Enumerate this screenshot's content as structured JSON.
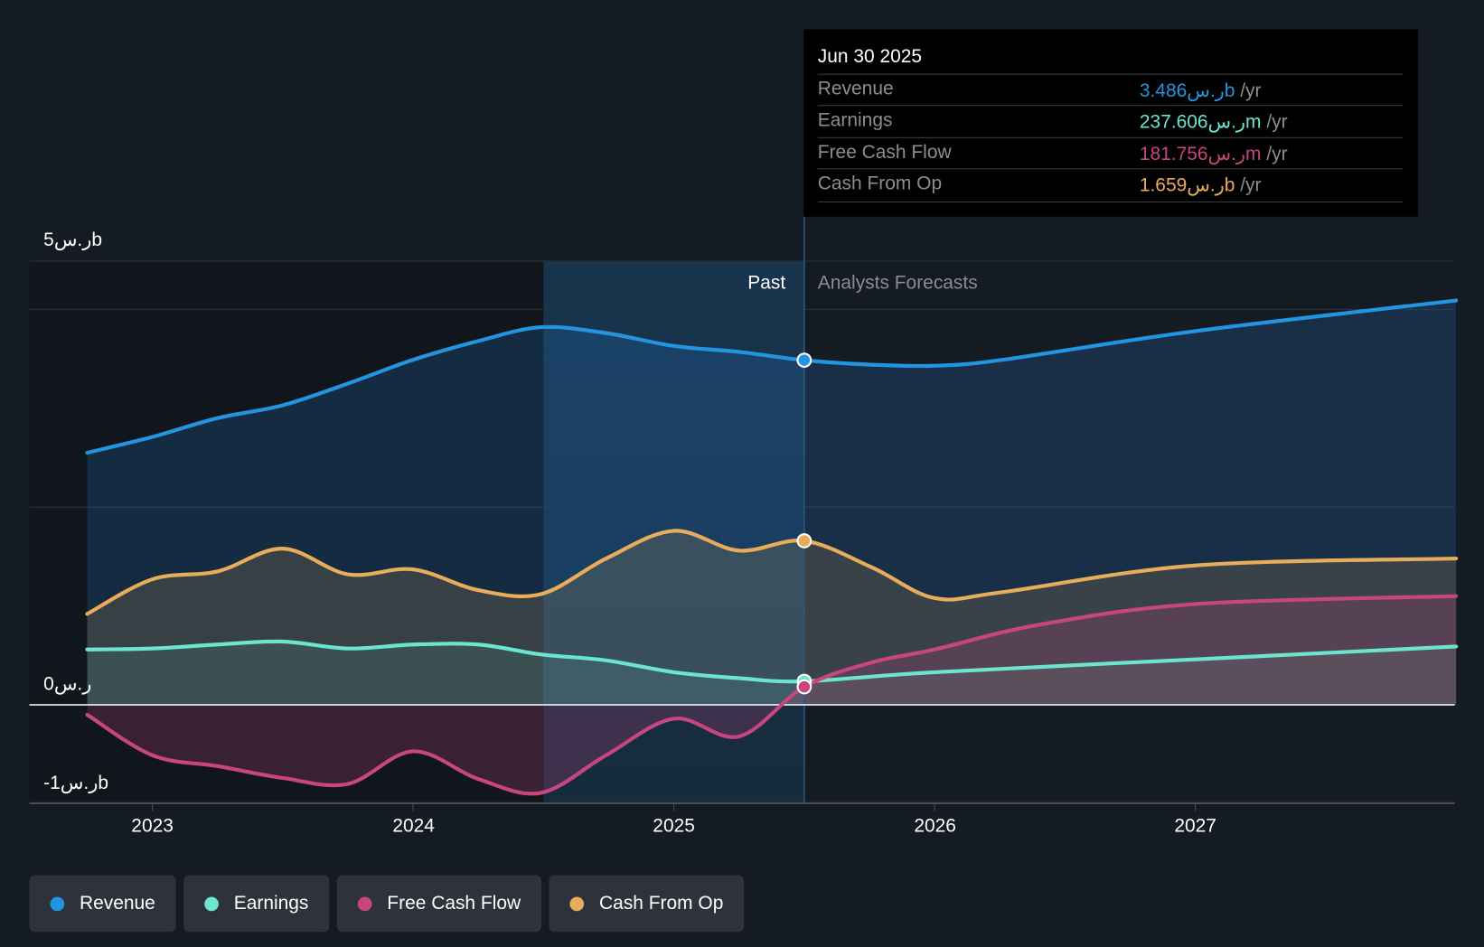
{
  "tooltip": {
    "date": "Jun 30 2025",
    "rows": [
      {
        "label": "Revenue",
        "value": "3.486ر.سb",
        "unit": " /yr",
        "color": "#2394df"
      },
      {
        "label": "Earnings",
        "value": "237.606ر.سm",
        "unit": " /yr",
        "color": "#6ce5d0"
      },
      {
        "label": "Free Cash Flow",
        "value": "181.756ر.سm",
        "unit": " /yr",
        "color": "#c8467f"
      },
      {
        "label": "Cash From Op",
        "value": "1.659ر.سb",
        "unit": " /yr",
        "color": "#e8ad5a"
      }
    ]
  },
  "zones": {
    "past": "Past",
    "forecast": "Analysts Forecasts"
  },
  "legend": [
    {
      "label": "Revenue",
      "color": "#2394df"
    },
    {
      "label": "Earnings",
      "color": "#6ce5d0"
    },
    {
      "label": "Free Cash Flow",
      "color": "#c8467f"
    },
    {
      "label": "Cash From Op",
      "color": "#e8ad5a"
    }
  ],
  "chart_data": {
    "type": "line",
    "ylabel": "",
    "xlabel": "",
    "ytick_labels": {
      "top": "5ر.سb",
      "zero": "0ر.س",
      "bottom": "-1ر.سb"
    },
    "ylim": [
      -1,
      5
    ],
    "xticks": [
      2023,
      2024,
      2025,
      2026,
      2027
    ],
    "xlim": [
      2022.53,
      2028
    ],
    "past_start": 2024.5,
    "divider": 2025.5,
    "series": [
      {
        "name": "Revenue",
        "color": "#2394df",
        "x": [
          2022.75,
          2023,
          2023.25,
          2023.5,
          2023.75,
          2024,
          2024.25,
          2024.49,
          2024.74,
          2025,
          2025.25,
          2025.5,
          2025.76,
          2026,
          2026.26,
          2027,
          2028
        ],
        "values": [
          2.55,
          2.71,
          2.9,
          3.03,
          3.25,
          3.49,
          3.68,
          3.82,
          3.76,
          3.63,
          3.57,
          3.486,
          3.44,
          3.43,
          3.49,
          3.78,
          4.09
        ]
      },
      {
        "name": "Cash From Op",
        "color": "#e8ad5a",
        "x": [
          2022.75,
          2023,
          2023.25,
          2023.5,
          2023.75,
          2024,
          2024.25,
          2024.49,
          2024.74,
          2025,
          2025.25,
          2025.5,
          2025.76,
          2026,
          2026.26,
          2027,
          2028
        ],
        "values": [
          0.92,
          1.27,
          1.35,
          1.58,
          1.32,
          1.37,
          1.16,
          1.12,
          1.48,
          1.76,
          1.56,
          1.659,
          1.39,
          1.08,
          1.14,
          1.41,
          1.48
        ]
      },
      {
        "name": "Earnings",
        "color": "#6ce5d0",
        "x": [
          2022.75,
          2023,
          2023.25,
          2023.5,
          2023.75,
          2024,
          2024.25,
          2024.49,
          2024.74,
          2025,
          2025.25,
          2025.5,
          2026,
          2027,
          2028
        ],
        "values": [
          0.56,
          0.57,
          0.61,
          0.64,
          0.57,
          0.61,
          0.61,
          0.51,
          0.45,
          0.33,
          0.27,
          0.238,
          0.33,
          0.46,
          0.59
        ]
      },
      {
        "name": "Free Cash Flow",
        "color": "#c8467f",
        "x": [
          2022.75,
          2023,
          2023.25,
          2023.5,
          2023.75,
          2024,
          2024.25,
          2024.49,
          2024.74,
          2025,
          2025.25,
          2025.5,
          2025.76,
          2026,
          2026.4,
          2027,
          2028
        ],
        "values": [
          -0.1,
          -0.51,
          -0.62,
          -0.74,
          -0.8,
          -0.47,
          -0.75,
          -0.89,
          -0.51,
          -0.14,
          -0.32,
          0.182,
          0.43,
          0.56,
          0.81,
          1.02,
          1.1
        ]
      }
    ]
  }
}
